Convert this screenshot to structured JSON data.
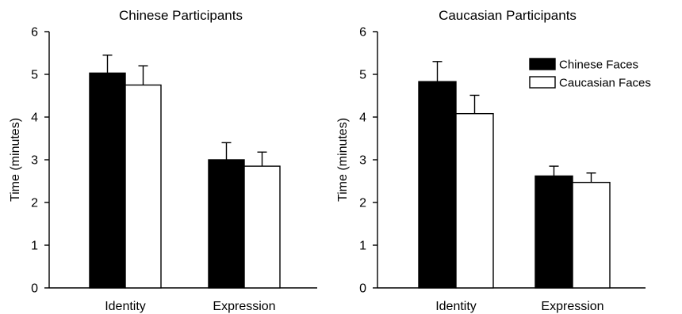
{
  "chart_data": [
    {
      "type": "bar",
      "title": "Chinese Participants",
      "ylabel": "Time (minutes)",
      "xlabel": "",
      "ylim": [
        0,
        6
      ],
      "yticks": [
        0,
        1,
        2,
        3,
        4,
        5,
        6
      ],
      "categories": [
        "Identity",
        "Expression"
      ],
      "error_bars": true,
      "legend": null,
      "series": [
        {
          "values": [
            5.03,
            3.0
          ],
          "errors": [
            0.42,
            0.4
          ],
          "color": "#000000"
        },
        {
          "values": [
            4.75,
            2.85
          ],
          "errors": [
            0.45,
            0.33
          ],
          "color": "#ffffff"
        }
      ]
    },
    {
      "type": "bar",
      "title": "Caucasian Participants",
      "ylabel": "Time (minutes)",
      "xlabel": "",
      "ylim": [
        0,
        6
      ],
      "yticks": [
        0,
        1,
        2,
        3,
        4,
        5,
        6
      ],
      "categories": [
        "Identity",
        "Expression"
      ],
      "error_bars": true,
      "legend": "top-right",
      "series": [
        {
          "name": "Chinese Faces",
          "values": [
            4.83,
            2.62
          ],
          "errors": [
            0.47,
            0.23
          ],
          "color": "#000000"
        },
        {
          "name": "Caucasian Faces",
          "values": [
            4.08,
            2.47
          ],
          "errors": [
            0.43,
            0.22
          ],
          "color": "#ffffff"
        }
      ]
    }
  ]
}
